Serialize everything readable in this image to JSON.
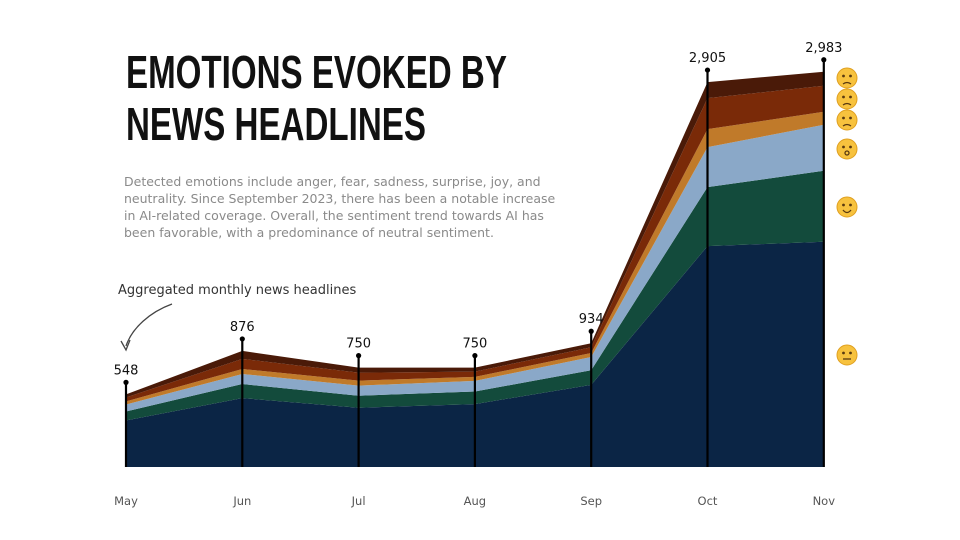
{
  "chart_data": {
    "type": "stacked_area",
    "title_lines": [
      "EMOTIONS EVOKED BY",
      "NEWS HEADLINES"
    ],
    "subtitle_lines": [
      "Detected emotions include anger, fear, sadness, surprise, joy, and",
      "neutrality. Since September 2023, there has been a notable increase",
      "in AI-related coverage. Overall, the sentiment trend towards AI has",
      "been favorable, with a predominance of neutral sentiment."
    ],
    "annotation": "Aggregated monthly news headlines",
    "categories": [
      "May",
      "Jun",
      "Jul",
      "Aug",
      "Sep",
      "Oct",
      "Nov"
    ],
    "series": [
      {
        "color": "#0b2545",
        "values": [
          351,
          520,
          447,
          475,
          620,
          1667,
          1700
        ]
      },
      {
        "color": "#134b3c",
        "values": [
          68,
          106,
          91,
          95,
          110,
          445,
          536
        ]
      },
      {
        "color": "#8aa8c8",
        "values": [
          53,
          76,
          76,
          80,
          100,
          302,
          347
        ]
      },
      {
        "color": "#c07a2a",
        "values": [
          23,
          38,
          38,
          30,
          30,
          136,
          98
        ]
      },
      {
        "color": "#7a2a08",
        "values": [
          30,
          76,
          60,
          40,
          44,
          234,
          196
        ]
      },
      {
        "color": "#4a1a08",
        "values": [
          23,
          60,
          38,
          30,
          30,
          121,
          106
        ]
      }
    ],
    "totals": [
      548,
      876,
      750,
      750,
      934,
      2905,
      2983
    ],
    "value_labels": [
      "548",
      "876",
      "750",
      "750",
      "934",
      "2,905",
      "2,983"
    ],
    "ylim": [
      0,
      3200
    ]
  }
}
